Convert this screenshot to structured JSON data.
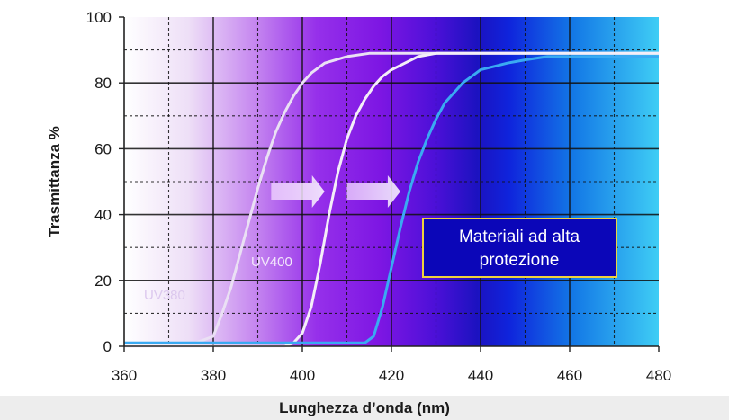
{
  "chart_data": {
    "type": "line",
    "xlabel": "Lunghezza d’onda (nm)",
    "ylabel": "Trasmittanza %",
    "xlim": [
      360,
      480
    ],
    "ylim": [
      0,
      100
    ],
    "x_ticks": [
      "360",
      "380",
      "400",
      "420",
      "440",
      "460",
      "480"
    ],
    "y_ticks": [
      "0",
      "20",
      "40",
      "60",
      "80",
      "100"
    ],
    "grid": true,
    "series": [
      {
        "name": "UV380",
        "color": "#eae0f4",
        "x": [
          360,
          376,
          380,
          382,
          384,
          386,
          388,
          390,
          392,
          394,
          396,
          398,
          400,
          402,
          405,
          410,
          415,
          420,
          430,
          440,
          450,
          460,
          470,
          480
        ],
        "y": [
          1,
          1,
          3,
          10,
          18,
          28,
          38,
          48,
          57,
          65,
          71,
          76,
          80,
          83,
          86,
          88,
          89,
          89,
          89,
          89,
          89,
          89,
          89,
          89
        ]
      },
      {
        "name": "UV400",
        "color": "#f4eef8",
        "x": [
          360,
          396,
          398,
          400,
          402,
          404,
          406,
          408,
          410,
          412,
          414,
          416,
          418,
          420,
          423,
          426,
          430,
          440,
          450,
          460,
          470,
          480
        ],
        "y": [
          0,
          0,
          1,
          4,
          12,
          25,
          40,
          53,
          63,
          70,
          75,
          79,
          82,
          84,
          86,
          88,
          89,
          89,
          89,
          89,
          89,
          89
        ]
      },
      {
        "name": "",
        "color": "#3aaaf2",
        "x": [
          360,
          414,
          416,
          418,
          420,
          422,
          424,
          426,
          428,
          430,
          432,
          434,
          436,
          438,
          440,
          443,
          446,
          450,
          455,
          460,
          470,
          480
        ],
        "y": [
          1,
          1,
          3,
          12,
          24,
          36,
          47,
          56,
          63,
          69,
          74,
          77,
          80,
          82,
          84,
          85,
          86,
          87,
          88,
          88,
          88,
          88
        ]
      }
    ],
    "annotations": {
      "uv380": "UV380",
      "uv400": "UV400",
      "box": [
        "Materiali ad alta",
        "protezione"
      ]
    }
  }
}
